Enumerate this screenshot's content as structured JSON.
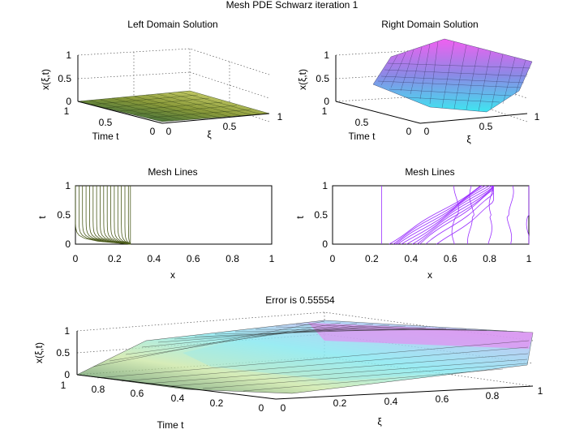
{
  "figure": {
    "suptitle": "Mesh PDE Schwarz iteration 1"
  },
  "chart_data": [
    {
      "type": "surface",
      "title": "Left Domain Solution",
      "xlabel": "ξ",
      "ylabel": "Time t",
      "zlabel": "x(ξ,t)",
      "xticks": [
        "0",
        "0.5",
        "1"
      ],
      "yticks": [
        "0",
        "0.5",
        "1"
      ],
      "zticks": [
        "0",
        "0.5",
        "1"
      ],
      "xlim": [
        0,
        1
      ],
      "ylim": [
        0,
        1
      ],
      "zlim": [
        0,
        1
      ],
      "colormap": "yellow-green",
      "description_values": {
        "xi_range": [
          0,
          1
        ],
        "surface_max": 0.28
      }
    },
    {
      "type": "surface",
      "title": "Right Domain Solution",
      "xlabel": "ξ",
      "ylabel": "Time t",
      "zlabel": "x(ξ,t)",
      "xticks": [
        "0",
        "0.5",
        "1"
      ],
      "yticks": [
        "0",
        "0.5",
        "1"
      ],
      "zticks": [
        "0",
        "0.5",
        "1"
      ],
      "xlim": [
        0,
        1
      ],
      "ylim": [
        0,
        1
      ],
      "zlim": [
        0,
        1
      ],
      "colormap": "cyan-magenta",
      "description_values": {
        "surface_min": 0.25,
        "surface_max": 1
      }
    },
    {
      "type": "line",
      "title": "Mesh Lines",
      "xlabel": "x",
      "ylabel": "t",
      "xticks": [
        "0",
        "0.2",
        "0.4",
        "0.6",
        "0.8",
        "1"
      ],
      "yticks": [
        "0",
        "0.5",
        "1"
      ],
      "xlim": [
        0,
        1
      ],
      "ylim": [
        0,
        1
      ],
      "line_color": "#4a5a1a",
      "mesh_lines_x": [
        0.0,
        0.018,
        0.036,
        0.054,
        0.072,
        0.09,
        0.108,
        0.126,
        0.144,
        0.162,
        0.18,
        0.198,
        0.216,
        0.234,
        0.252,
        0.27,
        0.28
      ]
    },
    {
      "type": "line",
      "title": "Mesh Lines",
      "xlabel": "x",
      "ylabel": "t",
      "xticks": [
        "0",
        "0.2",
        "0.4",
        "0.6",
        "0.8",
        "1"
      ],
      "yticks": [
        "0",
        "0.5",
        "1"
      ],
      "xlim": [
        0,
        1
      ],
      "ylim": [
        0,
        1
      ],
      "line_color": "#9b30ff",
      "mesh_lines_x_at_t0": [
        0.25,
        0.28,
        0.3,
        0.32,
        0.34,
        0.36,
        0.38,
        0.4,
        0.42,
        0.44,
        0.48,
        0.54,
        0.62,
        0.7,
        0.8,
        0.9,
        1.0
      ]
    },
    {
      "type": "surface",
      "title": "Error is 0.55554",
      "xlabel": "ξ",
      "ylabel": "Time t",
      "zlabel": "x(ξ,t)",
      "xticks": [
        "0",
        "0.2",
        "0.4",
        "0.6",
        "0.8",
        "1"
      ],
      "yticks": [
        "0",
        "0.2",
        "0.4",
        "0.6",
        "0.8",
        "1"
      ],
      "zticks": [
        "0",
        "0.5",
        "1"
      ],
      "xlim": [
        0,
        1
      ],
      "ylim": [
        0,
        1
      ],
      "zlim": [
        0,
        1
      ],
      "error_value": 0.55554
    }
  ]
}
